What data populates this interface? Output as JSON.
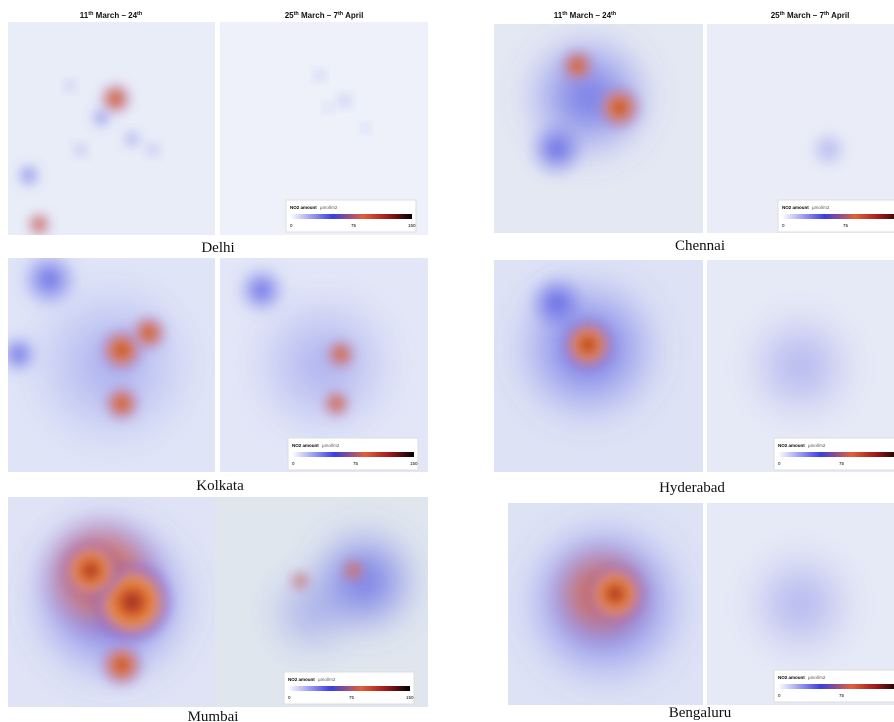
{
  "headers": {
    "left": [
      "11",
      "th",
      " March – 24",
      "th"
    ],
    "right": [
      "25",
      "th",
      " March – 7",
      "th",
      " April"
    ]
  },
  "legend": {
    "title": "NO2 amount",
    "unit": "µmol/m2",
    "ticks": [
      "0",
      "75",
      "150"
    ]
  },
  "cities": [
    "Delhi",
    "Kolkata",
    "Mumbai",
    "Chennai",
    "Hyderabad",
    "Bengaluru"
  ]
}
